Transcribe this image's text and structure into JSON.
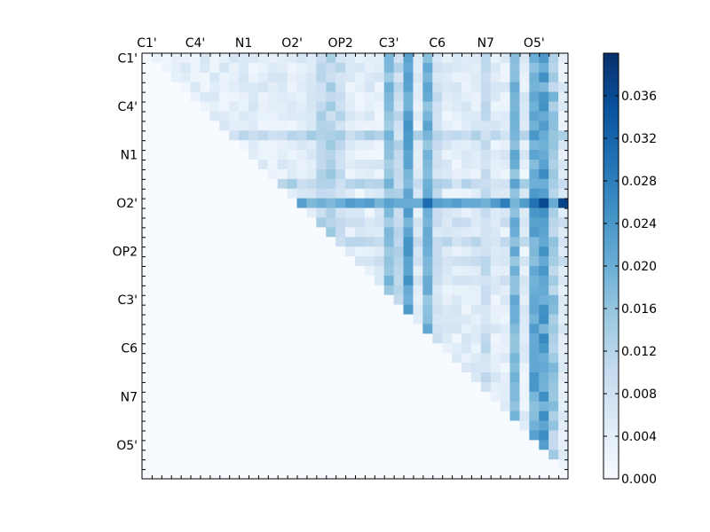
{
  "chart_data": {
    "type": "heatmap",
    "title": "",
    "xlabel": "",
    "ylabel": "",
    "n": 44,
    "x_tick_labels": [
      "C1'",
      "C4'",
      "N1",
      "O2'",
      "OP2",
      "C3'",
      "C6",
      "N7",
      "O5'"
    ],
    "y_tick_labels": [
      "C1'",
      "C4'",
      "N1",
      "O2'",
      "OP2",
      "C3'",
      "C6",
      "N7",
      "O5'"
    ],
    "colorbar": {
      "cmap": "Blues",
      "range": [
        0.0,
        0.04
      ],
      "tick_labels": [
        "0.000",
        "0.004",
        "0.008",
        "0.012",
        "0.016",
        "0.020",
        "0.024",
        "0.028",
        "0.032",
        "0.036"
      ],
      "ticks": [
        0.0,
        0.004,
        0.008,
        0.012,
        0.016,
        0.02,
        0.024,
        0.028,
        0.032,
        0.036
      ]
    },
    "matrix": {
      "shape": "upper-triangular",
      "background": 0.0,
      "strong_columns": [
        {
          "col": 27,
          "value": 0.023
        },
        {
          "col": 29,
          "value": 0.02
        },
        {
          "col": 25,
          "value": 0.018
        },
        {
          "col": 38,
          "value": 0.02
        },
        {
          "col": 41,
          "value": 0.024
        },
        {
          "col": 40,
          "value": 0.022
        }
      ],
      "strong_row": {
        "row": 15,
        "value": 0.024,
        "peak_cols": {
          "41": 0.036,
          "43": 0.037,
          "40": 0.03,
          "29": 0.031,
          "37": 0.028
        }
      },
      "medium_columns": [
        {
          "col": 18,
          "value": 0.012
        },
        {
          "col": 19,
          "value": 0.013
        },
        {
          "col": 20,
          "value": 0.011
        },
        {
          "col": 26,
          "value": 0.011
        },
        {
          "col": 30,
          "value": 0.009
        },
        {
          "col": 35,
          "value": 0.01
        },
        {
          "col": 42,
          "value": 0.016
        }
      ],
      "medium_rows": [
        {
          "row": 8,
          "value": 0.012
        },
        {
          "row": 13,
          "value": 0.012
        },
        {
          "row": 17,
          "value": 0.008
        },
        {
          "row": 19,
          "value": 0.01
        },
        {
          "row": 21,
          "value": 0.009
        },
        {
          "row": 23,
          "value": 0.008
        }
      ],
      "default_upper_value": 0.005
    }
  }
}
